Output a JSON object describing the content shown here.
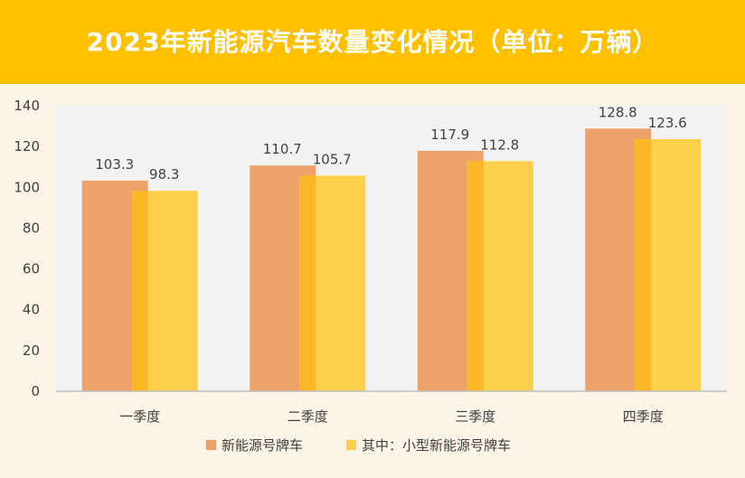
{
  "title": "2023年新能源汽车数量变化情况（单位：万辆）",
  "colors": {
    "title_band": "#ffc000",
    "series_1": "#eda26a",
    "series_2": "#fcd04a",
    "overlap": "#fbb726",
    "plot_bg": "#f2f2f2",
    "frame_bg": "#fdf3e6"
  },
  "chart_data": {
    "type": "bar",
    "categories": [
      "一季度",
      "二季度",
      "三季度",
      "四季度"
    ],
    "series": [
      {
        "name": "新能源号牌车",
        "values": [
          103.3,
          110.7,
          117.9,
          128.8
        ]
      },
      {
        "name": "其中：小型新能源号牌车",
        "values": [
          98.3,
          105.7,
          112.8,
          123.6
        ]
      }
    ],
    "ylim": [
      0,
      140
    ],
    "yticks": [
      0,
      20,
      40,
      60,
      80,
      100,
      120,
      140
    ],
    "data_labels": [
      [
        "103.3",
        "110.7",
        "117.9",
        "128.8"
      ],
      [
        "98.3",
        "105.7",
        "112.8",
        "123.6"
      ]
    ],
    "legend_position": "bottom",
    "grid": false
  }
}
